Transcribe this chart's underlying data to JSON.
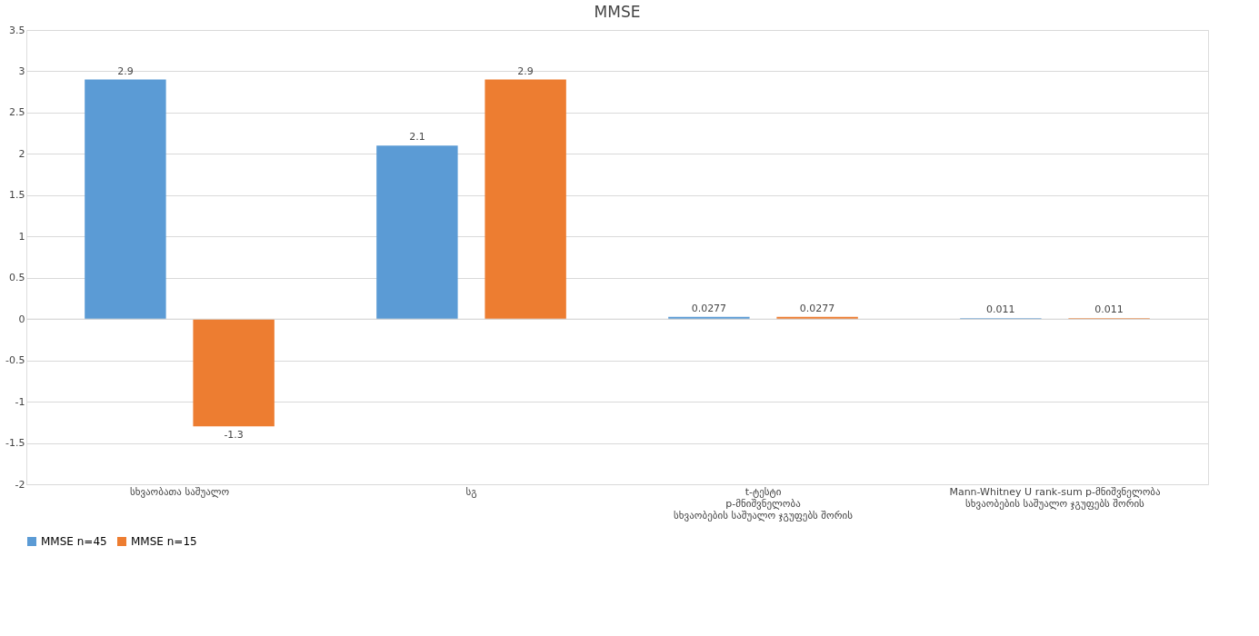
{
  "chart_data": {
    "type": "bar",
    "title": "MMSE",
    "categories": [
      "სხვაობათა საშუალო",
      "სგ",
      "t-ტესტი\np-მნიშვნელობა\nსხვაობების საშუალო  ჯგუფებს შორის",
      "Mann-Whitney U rank-sum p-მნიშვნელობა\nსხვაობების საშუალო  ჯგუფებს  შორის"
    ],
    "series": [
      {
        "name": "MMSE n=45",
        "color": "#5b9bd5",
        "values": [
          2.9,
          2.1,
          0.0277,
          0.011
        ]
      },
      {
        "name": "MMSE n=15",
        "color": "#ed7d31",
        "values": [
          -1.3,
          2.9,
          0.0277,
          0.011
        ]
      }
    ],
    "ylim": [
      -2,
      3.5
    ],
    "yticks": [
      -2,
      -1.5,
      -1,
      -0.5,
      0,
      0.5,
      1,
      1.5,
      2,
      2.5,
      3,
      3.5
    ],
    "grid": "y",
    "legend": "bottom",
    "data_labels": true
  }
}
